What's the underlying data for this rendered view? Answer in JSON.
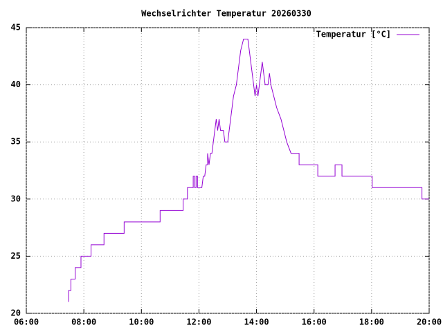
{
  "chart_data": {
    "type": "line",
    "title": "Wechselrichter Temperatur 20260330",
    "xlim": [
      6,
      20
    ],
    "xticks": [
      {
        "value": 6,
        "label": "06:00"
      },
      {
        "value": 8,
        "label": "08:00"
      },
      {
        "value": 10,
        "label": "10:00"
      },
      {
        "value": 12,
        "label": "12:00"
      },
      {
        "value": 14,
        "label": "14:00"
      },
      {
        "value": 16,
        "label": "16:00"
      },
      {
        "value": 18,
        "label": "18:00"
      },
      {
        "value": 20,
        "label": "20:00"
      }
    ],
    "ylim": [
      20,
      45
    ],
    "yticks": [
      20,
      25,
      30,
      35,
      40,
      45
    ],
    "grid": true,
    "legend": "top-right",
    "series": [
      {
        "name": "Temperatur [°C]",
        "color": "#9400d3",
        "x": [
          7.47,
          7.47,
          7.55,
          7.55,
          7.7,
          7.7,
          7.9,
          7.9,
          8.25,
          8.25,
          8.7,
          8.7,
          9.4,
          9.4,
          10.65,
          10.65,
          11.45,
          11.45,
          11.6,
          11.6,
          11.8,
          11.8,
          11.85,
          11.85,
          11.9,
          11.9,
          11.95,
          11.95,
          12.1,
          12.15,
          12.2,
          12.25,
          12.3,
          12.3,
          12.35,
          12.4,
          12.45,
          12.5,
          12.55,
          12.6,
          12.65,
          12.7,
          12.75,
          12.85,
          12.9,
          13.0,
          13.05,
          13.1,
          13.15,
          13.2,
          13.3,
          13.35,
          13.4,
          13.45,
          13.55,
          13.7,
          13.75,
          13.8,
          13.85,
          13.9,
          13.95,
          14.0,
          14.05,
          14.1,
          14.15,
          14.2,
          14.25,
          14.3,
          14.4,
          14.45,
          14.5,
          14.6,
          14.7,
          14.85,
          14.95,
          15.05,
          15.2,
          15.3,
          15.48,
          15.48,
          16.13,
          16.13,
          16.73,
          16.73,
          16.97,
          16.97,
          18.02,
          18.02,
          19.75,
          19.75,
          20
        ],
        "values": [
          21,
          22,
          22,
          23,
          23,
          24,
          24,
          25,
          25,
          26,
          26,
          27,
          27,
          28,
          28,
          29,
          29,
          30,
          30,
          31,
          31,
          32,
          32,
          31,
          31,
          32,
          32,
          31,
          31,
          32,
          32,
          33,
          33,
          34,
          33,
          34,
          34,
          35,
          36,
          37,
          36,
          37,
          36,
          36,
          35,
          35,
          36,
          37,
          38,
          39,
          40,
          41,
          42,
          43,
          44,
          44,
          43,
          42,
          41,
          40,
          39,
          40,
          39,
          40,
          41,
          42,
          41,
          40,
          40,
          41,
          40,
          39,
          38,
          37,
          36,
          35,
          34,
          34,
          34,
          33,
          33,
          32,
          32,
          33,
          33,
          32,
          32,
          31,
          31,
          30,
          30
        ]
      }
    ]
  }
}
